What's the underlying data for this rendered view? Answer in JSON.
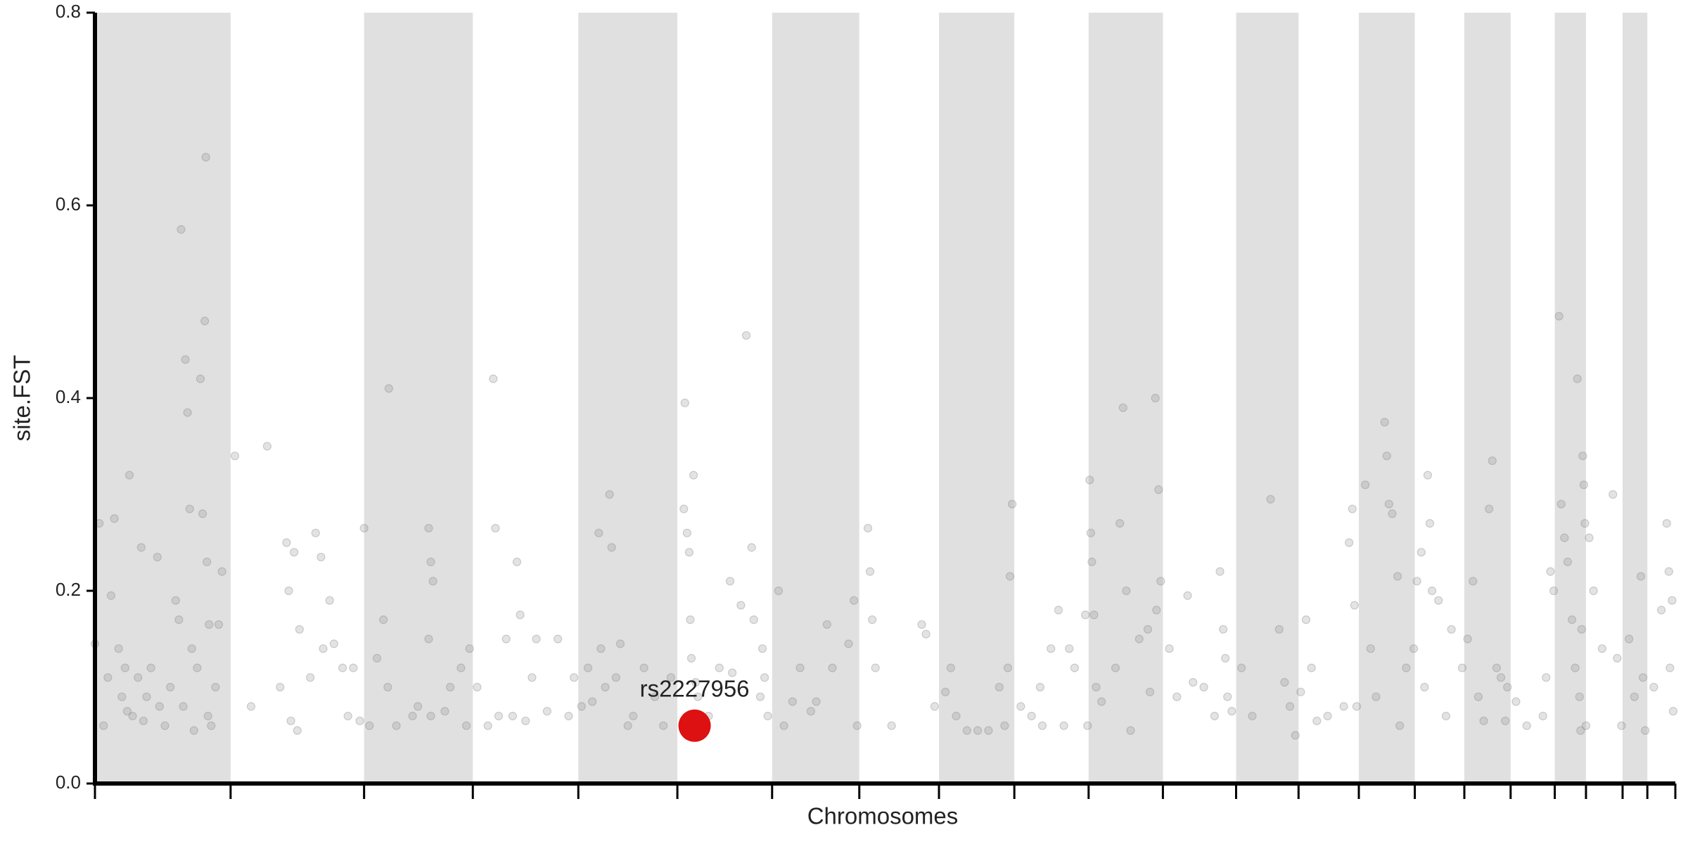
{
  "chart_data": {
    "type": "scatter",
    "x_label": "Chromosomes",
    "y_label": "site.FST",
    "xlim": [
      0,
      1468
    ],
    "ylim": [
      0,
      0.8
    ],
    "yticks": [
      {
        "value": 0,
        "label": "0.0"
      },
      0.2,
      0.4,
      0.6,
      0.8
    ],
    "chromosome_boundaries": [
      0,
      126,
      250,
      351,
      449,
      541,
      629,
      710,
      784,
      854,
      923,
      992,
      1060,
      1118,
      1174,
      1226,
      1272,
      1315,
      1356,
      1385,
      1419,
      1442,
      1468
    ],
    "band_color": "#e0e0e0",
    "color": "#808080",
    "x": [
      0,
      4,
      8,
      12,
      15,
      18,
      22,
      25,
      28,
      32,
      35,
      40,
      43,
      48,
      52,
      58,
      65,
      70,
      75,
      78,
      80,
      82,
      84,
      86,
      88,
      90,
      95,
      98,
      100,
      102,
      103,
      104,
      105,
      106,
      108,
      112,
      115,
      118,
      92,
      60,
      45,
      30,
      130,
      145,
      160,
      172,
      178,
      180,
      182,
      185,
      190,
      200,
      205,
      210,
      212,
      218,
      222,
      230,
      235,
      240,
      246,
      188,
      250,
      255,
      262,
      268,
      272,
      280,
      273,
      295,
      300,
      310,
      312,
      314,
      310,
      312,
      325,
      345,
      348,
      340,
      330,
      355,
      365,
      370,
      372,
      375,
      382,
      388,
      392,
      395,
      400,
      406,
      410,
      420,
      430,
      440,
      445,
      452,
      458,
      462,
      468,
      470,
      474,
      478,
      480,
      484,
      488,
      495,
      500,
      510,
      520,
      528,
      535,
      547,
      548,
      550,
      552,
      553,
      554,
      556,
      558,
      560,
      570,
      580,
      590,
      592,
      600,
      605,
      610,
      612,
      618,
      620,
      625,
      622,
      635,
      640,
      648,
      655,
      665,
      670,
      680,
      685,
      700,
      705,
      708,
      718,
      720,
      722,
      725,
      740,
      768,
      772,
      780,
      790,
      795,
      800,
      810,
      820,
      830,
      840,
      845,
      850,
      852,
      848,
      860,
      870,
      878,
      880,
      888,
      895,
      900,
      905,
      910,
      920,
      922,
      924,
      925,
      926,
      928,
      930,
      935,
      948,
      952,
      955,
      958,
      962,
      970,
      980,
      985,
      988,
      990,
      986,
      978,
      998,
      1005,
      1015,
      1020,
      1030,
      1040,
      1045,
      1048,
      1050,
      1052,
      1056,
      1065,
      1075,
      1092,
      1100,
      1105,
      1110,
      1115,
      1120,
      1125,
      1130,
      1135,
      1145,
      1160,
      1165,
      1168,
      1170,
      1172,
      1180,
      1185,
      1190,
      1198,
      1200,
      1202,
      1205,
      1210,
      1212,
      1218,
      1225,
      1228,
      1232,
      1235,
      1238,
      1240,
      1242,
      1248,
      1255,
      1260,
      1270,
      1275,
      1280,
      1285,
      1290,
      1295,
      1298,
      1302,
      1306,
      1310,
      1312,
      1320,
      1330,
      1345,
      1352,
      1355,
      1348,
      1360,
      1362,
      1365,
      1368,
      1372,
      1375,
      1377,
      1380,
      1382,
      1383,
      1384,
      1381,
      1379,
      1385,
      1388,
      1392,
      1400,
      1410,
      1414,
      1418,
      1425,
      1430,
      1436,
      1438,
      1440,
      1448,
      1455,
      1460,
      1462,
      1465,
      1466,
      1463
    ],
    "values": [
      0.145,
      0.27,
      0.06,
      0.11,
      0.195,
      0.275,
      0.14,
      0.09,
      0.12,
      0.32,
      0.07,
      0.11,
      0.245,
      0.09,
      0.12,
      0.235,
      0.06,
      0.1,
      0.19,
      0.17,
      0.575,
      0.08,
      0.44,
      0.385,
      0.285,
      0.14,
      0.12,
      0.42,
      0.28,
      0.48,
      0.65,
      0.23,
      0.07,
      0.165,
      0.06,
      0.1,
      0.165,
      0.22,
      0.055,
      0.08,
      0.065,
      0.075,
      0.34,
      0.08,
      0.35,
      0.1,
      0.25,
      0.2,
      0.065,
      0.24,
      0.16,
      0.11,
      0.26,
      0.235,
      0.14,
      0.19,
      0.145,
      0.12,
      0.07,
      0.12,
      0.065,
      0.055,
      0.265,
      0.06,
      0.13,
      0.17,
      0.1,
      0.06,
      0.41,
      0.07,
      0.08,
      0.265,
      0.23,
      0.21,
      0.15,
      0.07,
      0.075,
      0.06,
      0.14,
      0.12,
      0.1,
      0.1,
      0.06,
      0.42,
      0.265,
      0.07,
      0.15,
      0.07,
      0.23,
      0.175,
      0.065,
      0.11,
      0.15,
      0.075,
      0.15,
      0.07,
      0.11,
      0.08,
      0.12,
      0.085,
      0.26,
      0.14,
      0.1,
      0.3,
      0.245,
      0.11,
      0.145,
      0.06,
      0.07,
      0.12,
      0.09,
      0.06,
      0.11,
      0.285,
      0.395,
      0.26,
      0.24,
      0.17,
      0.13,
      0.32,
      0.105,
      0.09,
      0.07,
      0.12,
      0.21,
      0.115,
      0.185,
      0.465,
      0.245,
      0.17,
      0.09,
      0.14,
      0.07,
      0.11,
      0.2,
      0.06,
      0.085,
      0.12,
      0.075,
      0.085,
      0.165,
      0.12,
      0.145,
      0.19,
      0.06,
      0.265,
      0.22,
      0.17,
      0.12,
      0.06,
      0.165,
      0.155,
      0.08,
      0.095,
      0.12,
      0.07,
      0.055,
      0.055,
      0.055,
      0.1,
      0.06,
      0.215,
      0.29,
      0.12,
      0.08,
      0.07,
      0.1,
      0.06,
      0.14,
      0.18,
      0.06,
      0.14,
      0.12,
      0.175,
      0.06,
      0.315,
      0.26,
      0.23,
      0.175,
      0.1,
      0.085,
      0.12,
      0.27,
      0.39,
      0.2,
      0.055,
      0.15,
      0.095,
      0.4,
      0.305,
      0.21,
      0.18,
      0.16,
      0.14,
      0.09,
      0.195,
      0.105,
      0.1,
      0.07,
      0.22,
      0.16,
      0.13,
      0.09,
      0.075,
      0.12,
      0.07,
      0.295,
      0.16,
      0.105,
      0.08,
      0.05,
      0.095,
      0.17,
      0.12,
      0.065,
      0.07,
      0.08,
      0.25,
      0.285,
      0.185,
      0.08,
      0.31,
      0.14,
      0.09,
      0.375,
      0.34,
      0.29,
      0.28,
      0.215,
      0.06,
      0.12,
      0.14,
      0.21,
      0.24,
      0.1,
      0.32,
      0.27,
      0.2,
      0.19,
      0.07,
      0.16,
      0.12,
      0.15,
      0.21,
      0.09,
      0.065,
      0.285,
      0.335,
      0.12,
      0.11,
      0.065,
      0.1,
      0.085,
      0.06,
      0.07,
      0.22,
      0.2,
      0.11,
      0.485,
      0.29,
      0.255,
      0.23,
      0.17,
      0.12,
      0.42,
      0.055,
      0.34,
      0.31,
      0.27,
      0.16,
      0.09,
      0.06,
      0.255,
      0.2,
      0.14,
      0.3,
      0.13,
      0.06,
      0.15,
      0.09,
      0.215,
      0.11,
      0.055,
      0.1,
      0.18,
      0.27,
      0.22,
      0.19,
      0.075,
      0.12
    ],
    "highlight": {
      "label": "rs2227956",
      "x": 557,
      "value": 0.06,
      "color": "#dd1111"
    }
  }
}
